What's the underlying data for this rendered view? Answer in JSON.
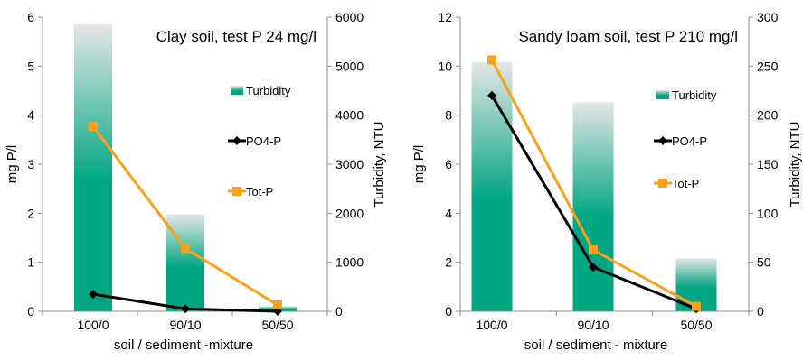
{
  "chart_data": [
    {
      "type": "bar",
      "title": "Clay soil, test P 24 mg/l",
      "xlabel": "soil / sediment -mixture",
      "ylabel": "mg P/l",
      "y2label": "Turbidity, NTU",
      "categories": [
        "100/0",
        "90/10",
        "50/50"
      ],
      "ylim": [
        0,
        6
      ],
      "yticks": [
        "0",
        "1",
        "2",
        "3",
        "4",
        "5",
        "6"
      ],
      "y2lim": [
        0,
        6000
      ],
      "y2ticks": [
        "0",
        "1000",
        "2000",
        "3000",
        "4000",
        "5000",
        "6000"
      ],
      "series": [
        {
          "name": "Turbidity",
          "kind": "bar",
          "axis": "right",
          "values": [
            5850,
            1980,
            100
          ]
        },
        {
          "name": "PO4-P",
          "kind": "line",
          "axis": "left",
          "marker": "diamond",
          "values": [
            0.35,
            0.05,
            0.0
          ]
        },
        {
          "name": "Tot-P",
          "kind": "line",
          "axis": "left",
          "marker": "square",
          "values": [
            3.77,
            1.28,
            0.13
          ]
        }
      ],
      "legend_position": "right"
    },
    {
      "type": "bar",
      "title": "Sandy loam soil, test P 210 mg/l",
      "xlabel": "soil / sediment - mixture",
      "ylabel": "mg P/l",
      "y2label": "Turbidity, NTU",
      "categories": [
        "100/0",
        "90/10",
        "50/50"
      ],
      "ylim": [
        0,
        12
      ],
      "yticks": [
        "0",
        "2",
        "4",
        "6",
        "8",
        "10",
        "12"
      ],
      "y2lim": [
        0,
        300
      ],
      "y2ticks": [
        "0",
        "50",
        "100",
        "150",
        "200",
        "250",
        "300"
      ],
      "series": [
        {
          "name": "Turbidity",
          "kind": "bar",
          "axis": "right",
          "values": [
            254,
            213,
            54
          ]
        },
        {
          "name": "PO4-P",
          "kind": "line",
          "axis": "left",
          "marker": "diamond",
          "values": [
            8.8,
            1.8,
            0.1
          ]
        },
        {
          "name": "Tot-P",
          "kind": "line",
          "axis": "left",
          "marker": "square",
          "values": [
            10.25,
            2.5,
            0.2
          ]
        }
      ],
      "legend_position": "right"
    }
  ],
  "colors": {
    "bar_top": "#e4e6e6",
    "bar_bottom": "#00a682",
    "po4": "#000000",
    "totp": "#f9a11b",
    "axis": "#8c8c8c"
  }
}
